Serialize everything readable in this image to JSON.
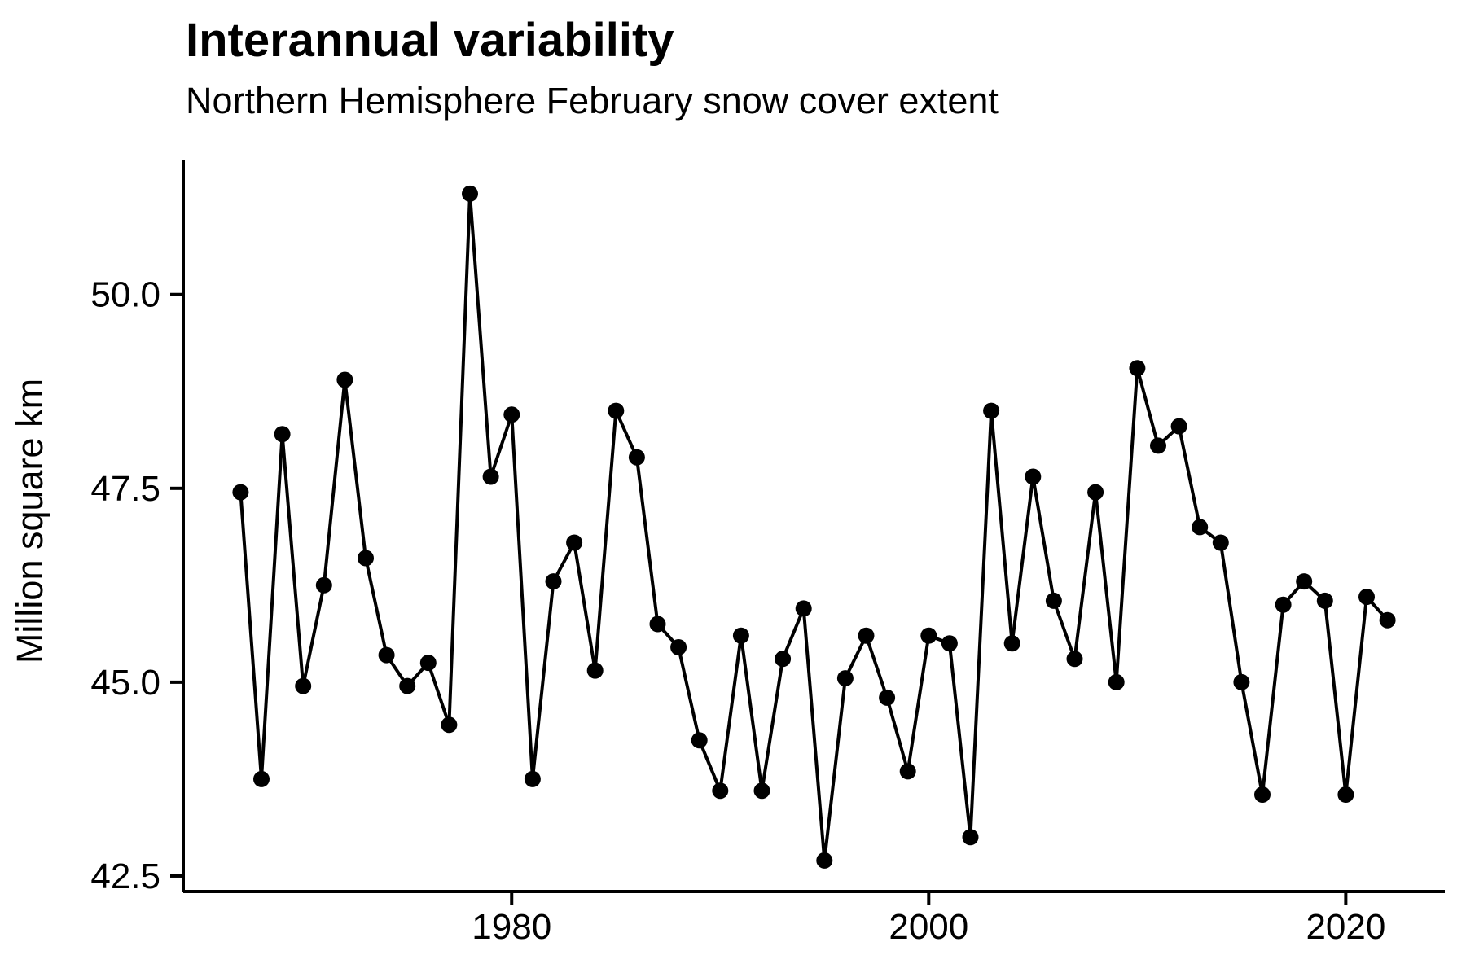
{
  "chart_data": {
    "type": "line",
    "title": "Interannual variability",
    "subtitle": "Northern Hemisphere February snow cover extent",
    "ylabel": "Million square km",
    "xlabel": "",
    "series_name": "NH February snow cover extent",
    "x": [
      1967,
      1968,
      1969,
      1970,
      1971,
      1972,
      1973,
      1974,
      1975,
      1976,
      1977,
      1978,
      1979,
      1980,
      1981,
      1982,
      1983,
      1984,
      1985,
      1986,
      1987,
      1988,
      1989,
      1990,
      1991,
      1992,
      1993,
      1994,
      1995,
      1996,
      1997,
      1998,
      1999,
      2000,
      2001,
      2002,
      2003,
      2004,
      2005,
      2006,
      2007,
      2008,
      2009,
      2010,
      2011,
      2012,
      2013,
      2014,
      2015,
      2016,
      2017,
      2018,
      2019,
      2020,
      2021,
      2022
    ],
    "values": [
      47.45,
      43.75,
      48.2,
      44.95,
      46.25,
      48.9,
      46.6,
      45.35,
      44.95,
      45.25,
      44.45,
      51.3,
      47.65,
      48.45,
      43.75,
      46.3,
      46.8,
      45.15,
      48.5,
      47.9,
      45.75,
      45.45,
      44.25,
      43.6,
      45.6,
      43.6,
      45.3,
      45.95,
      42.7,
      45.05,
      45.6,
      44.8,
      43.85,
      45.6,
      45.5,
      43.0,
      48.5,
      45.5,
      47.65,
      46.05,
      45.3,
      47.45,
      45.0,
      49.05,
      48.05,
      48.3,
      47.0,
      46.8,
      45.0,
      43.55,
      46.0,
      46.3,
      46.05,
      43.55,
      46.1,
      45.8
    ],
    "xlim": [
      1964.25,
      2024.75
    ],
    "ylim": [
      42.3,
      51.73
    ],
    "x_ticks": {
      "values": [
        1980,
        2000,
        2020
      ],
      "labels": [
        "1980",
        "2000",
        "2020"
      ]
    },
    "y_ticks": {
      "values": [
        42.5,
        45.0,
        47.5,
        50.0
      ],
      "labels": [
        "42.5",
        "45.0",
        "47.5",
        "50.0"
      ]
    },
    "grid": "off",
    "legend": "none",
    "marker": "filled-circle",
    "line_color": "#000000",
    "point_color": "#000000",
    "axis_color": "#000000",
    "background": "#FFFFFF"
  }
}
